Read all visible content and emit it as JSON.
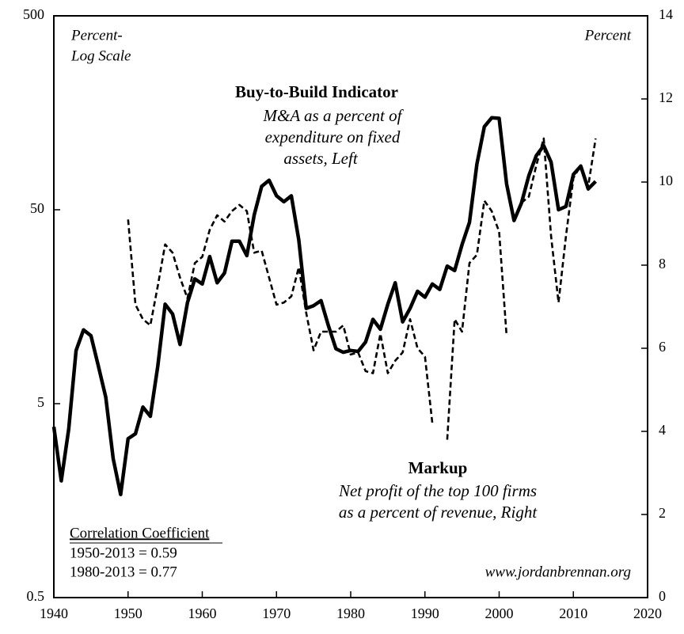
{
  "chart_data": {
    "type": "line",
    "axis_labels": {
      "left": [
        "Percent-",
        "Log Scale"
      ],
      "right": "Percent"
    },
    "annotations": {
      "left_desc": [
        "M&A as a percent of",
        "expenditure on fixed",
        "assets,  Left"
      ],
      "right_desc": [
        "Net profit of the top 100 firms",
        "as a percent of revenue, Right"
      ],
      "corr_title": "Correlation Coefficient",
      "corr_lines": [
        "1950-2013  = 0.59",
        "1980-2013  = 0.77"
      ],
      "source": "www.jordanbrennan.org"
    },
    "x": [
      1940,
      1941,
      1942,
      1943,
      1944,
      1945,
      1946,
      1947,
      1948,
      1949,
      1950,
      1951,
      1952,
      1953,
      1954,
      1955,
      1956,
      1957,
      1958,
      1959,
      1960,
      1961,
      1962,
      1963,
      1964,
      1965,
      1966,
      1967,
      1968,
      1969,
      1970,
      1971,
      1972,
      1973,
      1974,
      1975,
      1976,
      1977,
      1978,
      1979,
      1980,
      1981,
      1982,
      1983,
      1984,
      1985,
      1986,
      1987,
      1988,
      1989,
      1990,
      1991,
      1992,
      1993,
      1994,
      1995,
      1996,
      1997,
      1998,
      1999,
      2000,
      2001,
      2002,
      2003,
      2004,
      2005,
      2006,
      2007,
      2008,
      2009,
      2010,
      2011,
      2012,
      2013
    ],
    "series": [
      {
        "name": "Buy-to-Build Indicator",
        "color": "#000000",
        "style": "solid",
        "values": [
          3.8,
          2.0,
          3.7,
          9.4,
          12.0,
          11.2,
          7.8,
          5.4,
          2.6,
          1.7,
          3.3,
          3.5,
          4.8,
          4.3,
          7.8,
          16.3,
          14.5,
          10.1,
          16.6,
          22,
          20.7,
          28.7,
          21,
          23.6,
          34.4,
          34.4,
          29,
          47,
          66,
          71,
          59,
          55,
          59,
          35,
          15.5,
          16,
          17,
          12.6,
          9.6,
          9.2,
          9.4,
          9.3,
          10.4,
          13.6,
          12.1,
          16.3,
          21,
          13.2,
          15.5,
          19,
          17.7,
          20.7,
          19.4,
          25.6,
          24.3,
          33,
          43,
          86,
          134,
          149,
          148,
          68,
          44,
          54,
          75,
          95,
          107,
          88,
          50,
          52,
          76,
          84,
          64,
          70
        ]
      },
      {
        "name": "Markup",
        "color": "#000000",
        "style": "dashed",
        "axis": "y2",
        "values": [
          null,
          null,
          null,
          null,
          null,
          null,
          null,
          null,
          null,
          null,
          9.1,
          7.05,
          6.7,
          6.55,
          7.5,
          8.5,
          8.3,
          7.7,
          7.2,
          8.05,
          8.2,
          8.85,
          9.2,
          9.05,
          9.3,
          9.45,
          9.3,
          8.3,
          8.35,
          7.7,
          7.05,
          7.1,
          7.25,
          7.95,
          6.85,
          5.95,
          6.4,
          6.4,
          6.4,
          6.55,
          5.85,
          5.9,
          5.45,
          5.4,
          6.35,
          5.4,
          5.7,
          5.9,
          6.7,
          6.0,
          5.8,
          4.2,
          null,
          3.8,
          6.7,
          6.4,
          8.05,
          8.25,
          9.55,
          9.3,
          8.8,
          6.3,
          null,
          9.5,
          9.65,
          10.4,
          11.05,
          8.7,
          7.1,
          8.7,
          10.1,
          10.4,
          9.9,
          11.05
        ]
      }
    ],
    "xlim": [
      1940,
      2020
    ],
    "xticks": [
      1940,
      1950,
      1960,
      1970,
      1980,
      1990,
      2000,
      2010,
      2020
    ],
    "ylim": [
      0.5,
      500
    ],
    "yticks": [
      0.5,
      5,
      50,
      500
    ],
    "ylog": true,
    "y2lim": [
      0,
      14
    ],
    "y2ticks": [
      0,
      2,
      4,
      6,
      8,
      10,
      12,
      14
    ]
  }
}
